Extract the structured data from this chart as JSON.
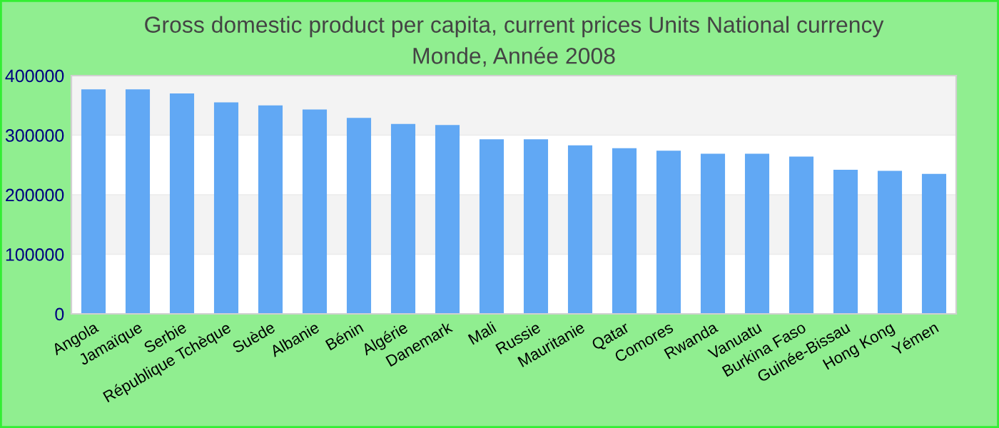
{
  "chart_data": {
    "type": "bar",
    "title": "Gross domestic product per capita, current prices Units National currency\nMonde, Année 2008",
    "categories": [
      "Angola",
      "Jamaïque",
      "Serbie",
      "République Tchèque",
      "Suède",
      "Albanie",
      "Bénin",
      "Algérie",
      "Danemark",
      "Mali",
      "Russie",
      "Mauritanie",
      "Qatar",
      "Comores",
      "Rwanda",
      "Vanuatu",
      "Burkina Faso",
      "Guinée-Bissau",
      "Hong Kong",
      "Yémen"
    ],
    "values": [
      377000,
      377000,
      370000,
      355000,
      350000,
      343000,
      329000,
      319000,
      317000,
      293000,
      293000,
      283000,
      278000,
      274000,
      269000,
      269000,
      264000,
      242000,
      240000,
      235000
    ],
    "color": "#61a8f4",
    "ylim": [
      0,
      400000
    ],
    "yticks": [
      0,
      100000,
      200000,
      300000,
      400000
    ],
    "grid": "y"
  }
}
